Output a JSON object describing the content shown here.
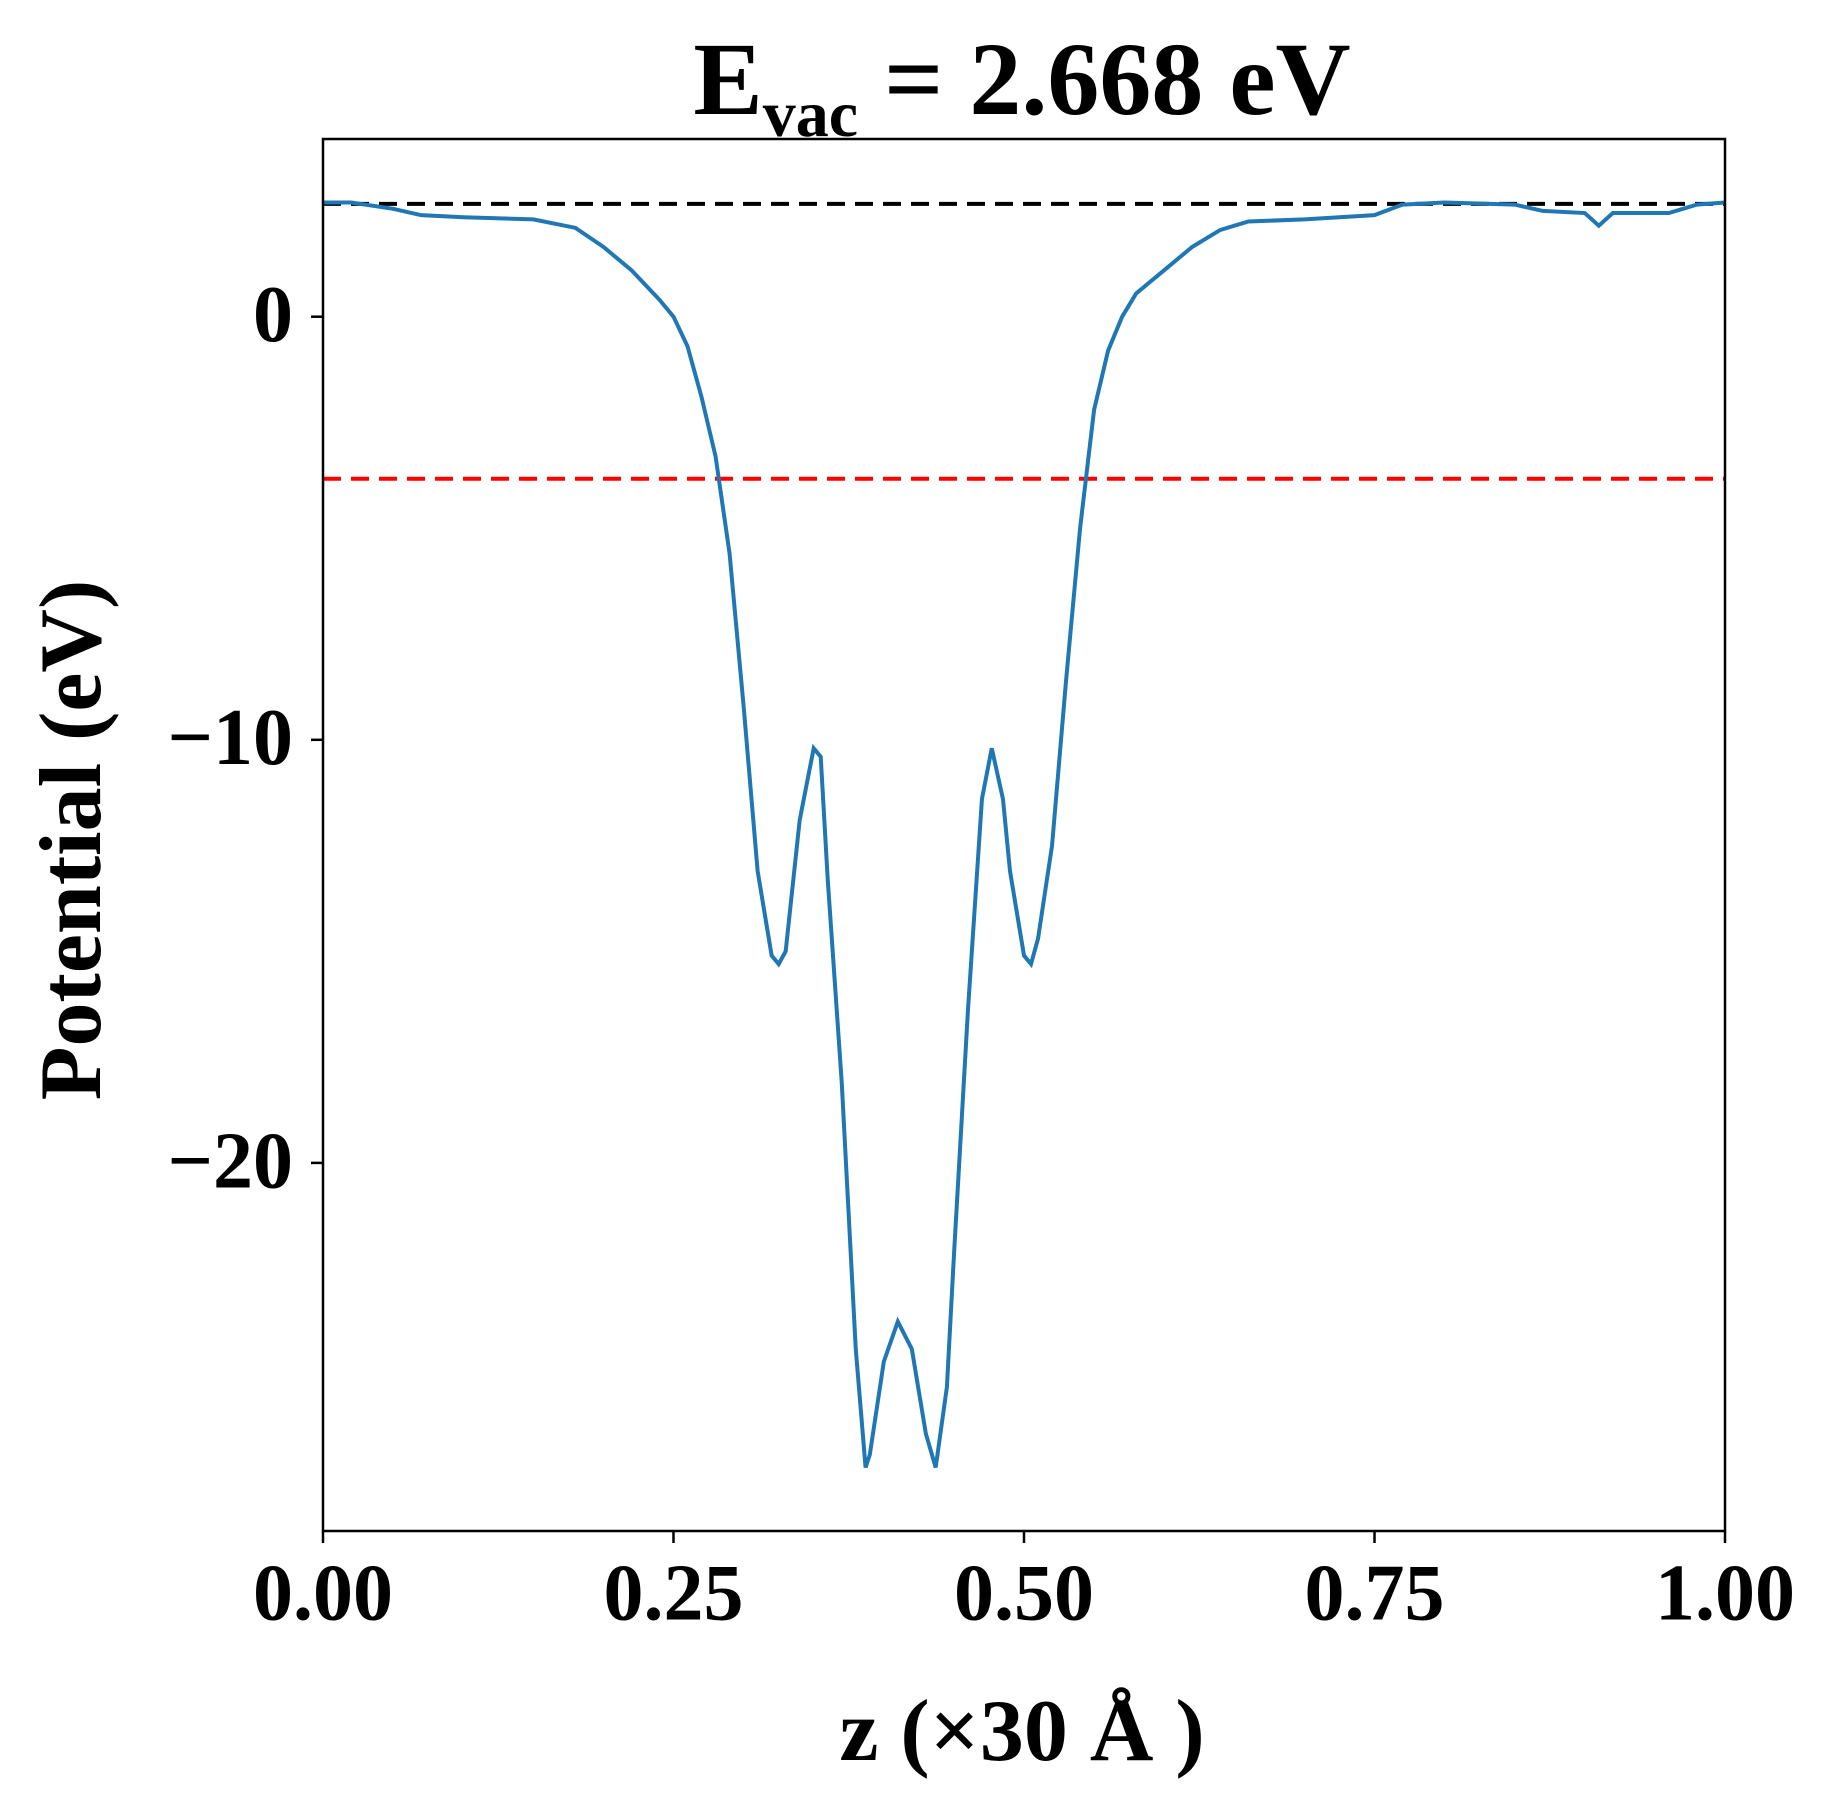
{
  "chart_data": {
    "type": "line",
    "title": {
      "main": "E",
      "subscript": "vac",
      "rest": " = 2.668 eV"
    },
    "x_label": "z (×30 Å )",
    "y_label": "Potential (eV)",
    "xlim": [
      0,
      1
    ],
    "ylim": [
      -28.7,
      4.2
    ],
    "xticks": [
      {
        "value": 0,
        "label": "0.00"
      },
      {
        "value": 0.25,
        "label": "0.25"
      },
      {
        "value": 0.5,
        "label": "0.50"
      },
      {
        "value": 0.75,
        "label": "0.75"
      },
      {
        "value": 1,
        "label": "1.00"
      }
    ],
    "yticks": [
      0,
      {
        "value": -10,
        "label": "−10"
      },
      {
        "value": -20,
        "label": "−20"
      }
    ],
    "hlines": [
      {
        "value": 2.668,
        "color": "#000000"
      },
      {
        "value": -3.83,
        "color": "#ff0000"
      }
    ],
    "x": [
      0,
      0.02,
      0.05,
      0.07,
      0.1,
      0.15,
      0.18,
      0.2,
      0.22,
      0.24,
      0.25,
      0.26,
      0.27,
      0.28,
      0.29,
      0.3,
      0.31,
      0.32,
      0.325,
      0.33,
      0.34,
      0.35,
      0.355,
      0.36,
      0.37,
      0.38,
      0.387,
      0.39,
      0.4,
      0.41,
      0.42,
      0.43,
      0.437,
      0.445,
      0.45,
      0.46,
      0.47,
      0.477,
      0.485,
      0.49,
      0.5,
      0.505,
      0.51,
      0.52,
      0.53,
      0.54,
      0.55,
      0.56,
      0.57,
      0.58,
      0.6,
      0.62,
      0.64,
      0.66,
      0.7,
      0.75,
      0.77,
      0.8,
      0.85,
      0.87,
      0.9,
      0.91,
      0.92,
      0.96,
      0.98,
      1.0
    ],
    "series": [
      {
        "color": "#1f77b4",
        "values": [
          2.7,
          2.7,
          2.55,
          2.4,
          2.35,
          2.3,
          2.1,
          1.65,
          1.1,
          0.4,
          0,
          -0.7,
          -1.9,
          -3.3,
          -5.6,
          -9.2,
          -13.1,
          -15.1,
          -15.3,
          -15,
          -11.9,
          -10.2,
          -10.4,
          -13.3,
          -18.1,
          -24.4,
          -27.2,
          -26.9,
          -24.7,
          -23.75,
          -24.4,
          -26.4,
          -27.2,
          -25.3,
          -22.2,
          -16.4,
          -11.4,
          -10.2,
          -11.4,
          -13.1,
          -15.1,
          -15.3,
          -14.7,
          -12.5,
          -8.6,
          -5.0,
          -2.2,
          -0.8,
          0,
          0.55,
          1.1,
          1.65,
          2.05,
          2.25,
          2.3,
          2.4,
          2.65,
          2.7,
          2.65,
          2.5,
          2.45,
          2.15,
          2.45,
          2.45,
          2.65,
          2.7
        ]
      }
    ]
  }
}
